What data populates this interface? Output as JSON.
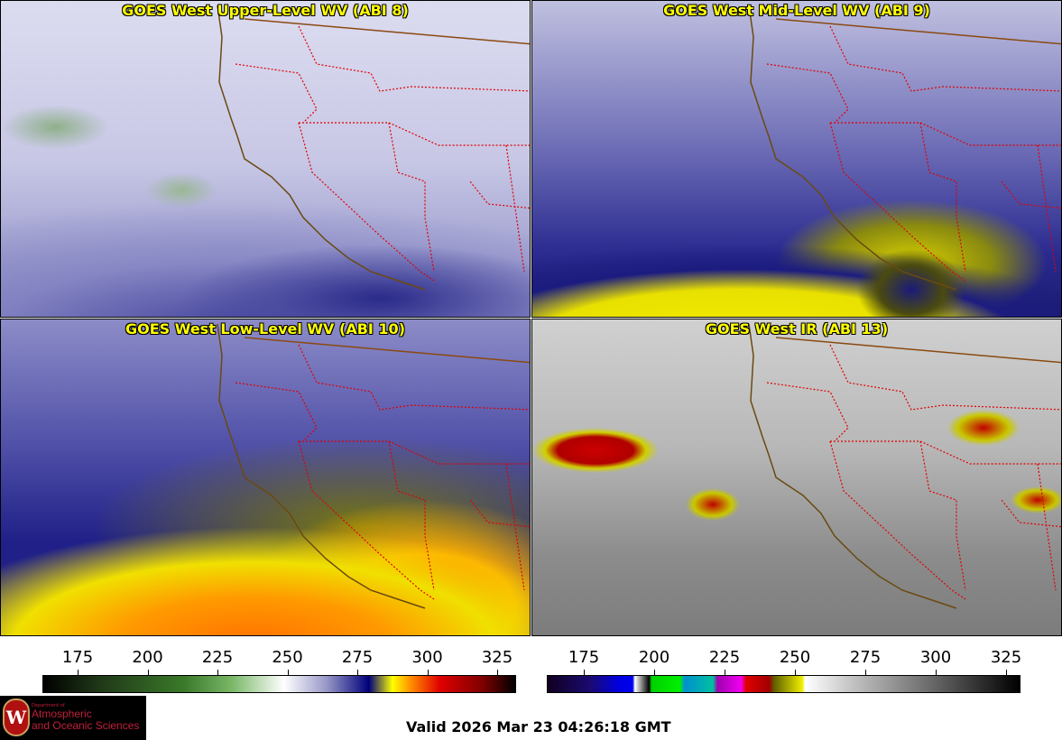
{
  "panels": [
    {
      "title": "GOES West Upper-Level WV (ABI 8)"
    },
    {
      "title": "GOES West Mid-Level WV (ABI 9)"
    },
    {
      "title": "GOES West Low-Level WV (ABI 10)"
    },
    {
      "title": "GOES West IR (ABI 13)"
    }
  ],
  "colorbars": [
    {
      "name": "water-vapor",
      "ticks": [
        "175",
        "200",
        "225",
        "250",
        "275",
        "300",
        "325"
      ],
      "range_k": [
        162,
        334
      ]
    },
    {
      "name": "infrared",
      "ticks": [
        "175",
        "200",
        "225",
        "250",
        "275",
        "300",
        "325"
      ],
      "range_k": [
        165,
        333
      ]
    }
  ],
  "logo": {
    "line1": "Department of",
    "line2": "Atmospheric",
    "line3": "and Oceanic Sciences",
    "crest": "W"
  },
  "valid": "Valid 2026 Mar 23 04:26:18 GMT"
}
